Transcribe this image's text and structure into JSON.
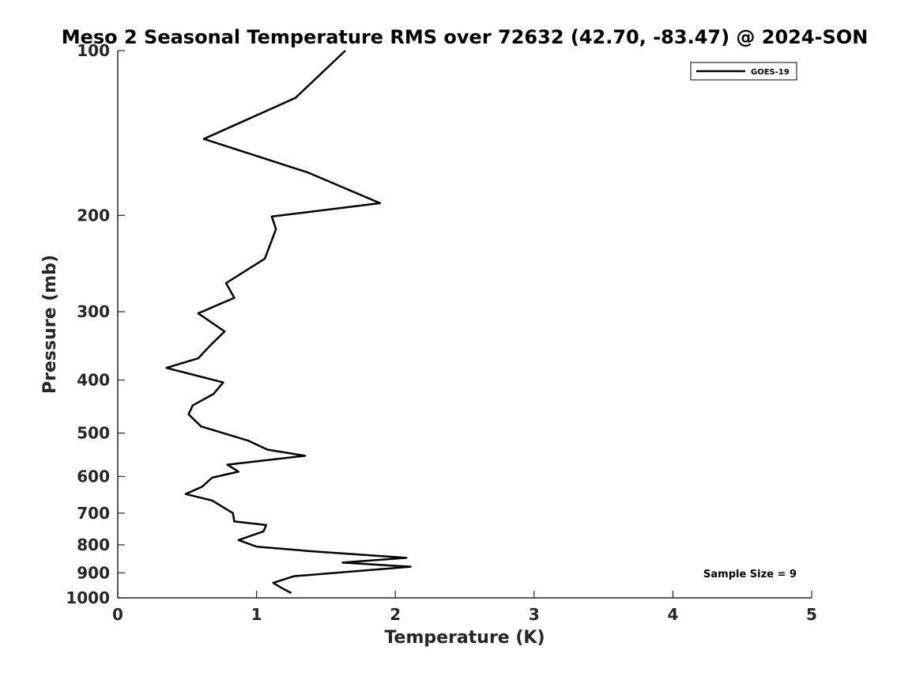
{
  "chart_data": {
    "type": "line",
    "title": "Meso 2 Seasonal Temperature RMS over 72632 (42.70, -83.47) @ 2024-SON",
    "xlabel": "Temperature (K)",
    "ylabel": "Pressure (mb)",
    "xlim": [
      0,
      5
    ],
    "ylim": [
      100,
      1000
    ],
    "y_scale": "log",
    "y_reversed": true,
    "x_ticks": [
      0,
      1,
      2,
      3,
      4,
      5
    ],
    "x_tick_labels": [
      "0",
      "1",
      "2",
      "3",
      "4",
      "5"
    ],
    "y_ticks": [
      100,
      200,
      300,
      400,
      500,
      600,
      700,
      800,
      900,
      1000
    ],
    "y_tick_labels": [
      "100",
      "200",
      "300",
      "400",
      "500",
      "600",
      "700",
      "800",
      "900",
      "1000"
    ],
    "grid": false,
    "legend_position": "top-right",
    "series": [
      {
        "name": "GOES-19",
        "color": "#000000",
        "x": [
          1.64,
          1.28,
          0.62,
          1.37,
          1.89,
          1.11,
          1.14,
          1.06,
          0.78,
          0.84,
          0.58,
          0.77,
          0.67,
          0.58,
          0.35,
          0.76,
          0.69,
          0.54,
          0.51,
          0.6,
          0.94,
          1.08,
          1.35,
          0.79,
          0.87,
          0.68,
          0.61,
          0.49,
          0.68,
          0.83,
          0.84,
          1.07,
          1.05,
          0.87,
          1.0,
          1.37,
          2.08,
          1.62,
          2.11,
          1.27,
          1.12,
          1.19,
          1.25
        ],
        "y": [
          100,
          122,
          145,
          167,
          190,
          201,
          212,
          240,
          266,
          283,
          302,
          326,
          345,
          365,
          380,
          404,
          424,
          445,
          462,
          486,
          516,
          536,
          550,
          571,
          588,
          603,
          626,
          646,
          664,
          700,
          725,
          736,
          756,
          784,
          806,
          821,
          845,
          862,
          877,
          913,
          939,
          962,
          980
        ]
      }
    ],
    "annotations": [
      "Sample Size = 9"
    ]
  }
}
